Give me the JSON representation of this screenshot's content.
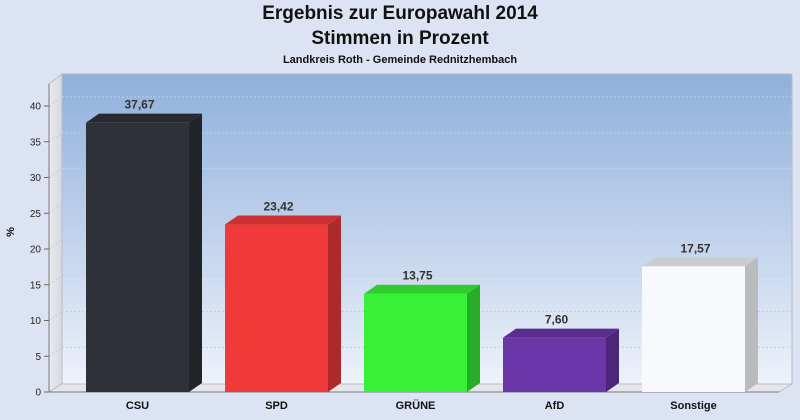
{
  "chart_data": {
    "type": "bar",
    "title": "Ergebnis zur Europawahl 2014",
    "subtitle": "Stimmen in Prozent",
    "caption": "Landkreis Roth - Gemeinde Rednitzhembach",
    "ylabel": "%",
    "xlabel": "",
    "ylim": [
      0,
      40
    ],
    "yticks": [
      0,
      5,
      10,
      15,
      20,
      25,
      30,
      35,
      40
    ],
    "categories": [
      "CSU",
      "SPD",
      "GRÜNE",
      "AfD",
      "Sonstige"
    ],
    "values": [
      37.67,
      23.42,
      13.75,
      7.6,
      17.57
    ],
    "value_labels": [
      "37,67",
      "23,42",
      "13,75",
      "7,60",
      "17,57"
    ],
    "colors": [
      "#2e3238",
      "#f03a3a",
      "#38f038",
      "#6a36a8",
      "#f7f9fc"
    ],
    "grid": true,
    "legend": "none"
  }
}
